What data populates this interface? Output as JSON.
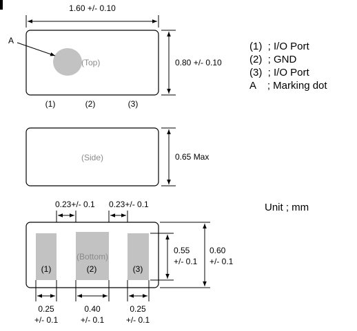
{
  "top_view": {
    "width_dim": "1.60 +/- 0.10",
    "height_dim": "0.80 +/- 0.10",
    "label": "(Top)",
    "marker_label": "A",
    "pins": [
      "(1)",
      "(2)",
      "(3)"
    ]
  },
  "side_view": {
    "label": "(Side)",
    "height_dim": "0.65 Max"
  },
  "bottom_view": {
    "label": "(Bottom)",
    "pins": [
      "(1)",
      "(2)",
      "(3)"
    ],
    "gap_dims": [
      "0.23+/- 0.1",
      "0.23+/- 0.1"
    ],
    "pad_height_dim": [
      "0.55",
      "+/- 0.1"
    ],
    "body_height_dim": [
      "0.60",
      "+/- 0.1"
    ],
    "pad_width_dims": [
      [
        "0.25",
        "+/- 0.1"
      ],
      [
        "0.40",
        "+/- 0.1"
      ],
      [
        "0.25",
        "+/- 0.1"
      ]
    ]
  },
  "legend": [
    "(1)  ; I/O Port",
    "(2)  ; GND",
    "(3)  ; I/O Port",
    "A    ; Marking dot"
  ],
  "unit": "Unit ; mm",
  "colors": {
    "pad_fill": "#c2c2c2",
    "outline": "#000000",
    "label_grey": "#8a8a8a"
  }
}
